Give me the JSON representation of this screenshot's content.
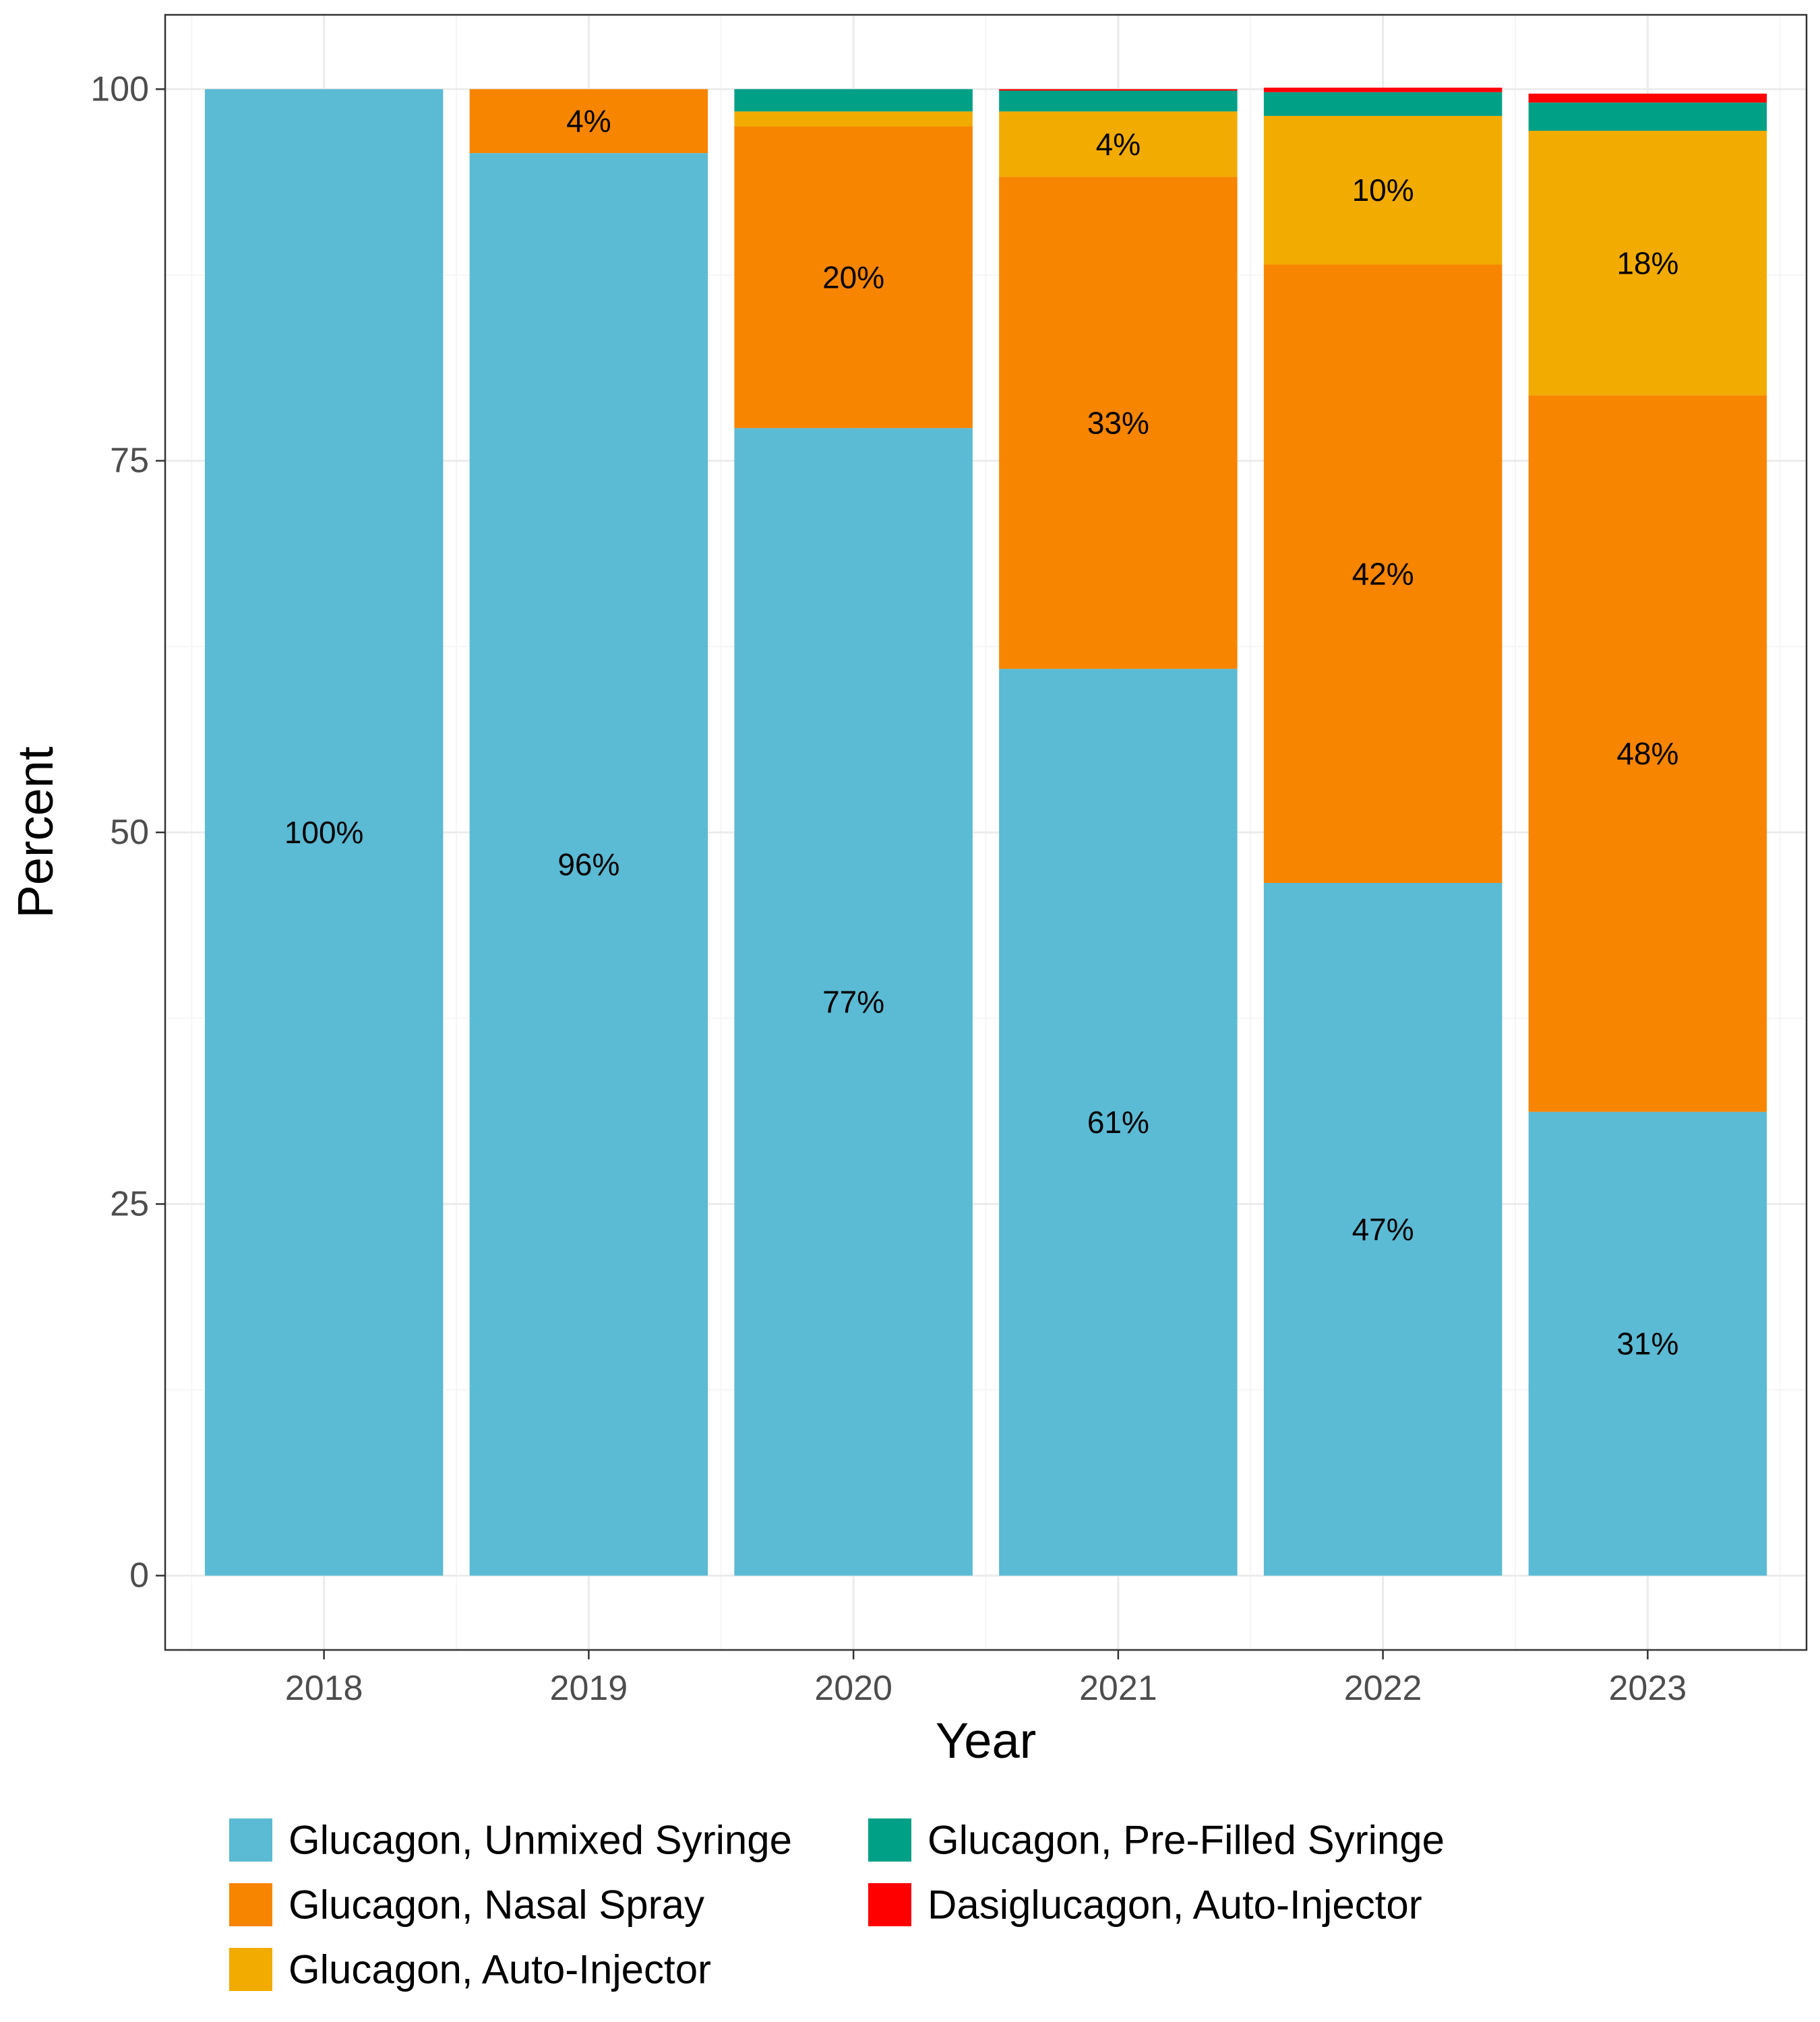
{
  "chart_data": {
    "type": "bar",
    "stacked": true,
    "xlabel": "Year",
    "ylabel": "Percent",
    "ylim": [
      -5,
      105
    ],
    "yticks": [
      0,
      25,
      50,
      75,
      100
    ],
    "grid": true,
    "legend_position": "bottom",
    "categories": [
      "2018",
      "2019",
      "2020",
      "2021",
      "2022",
      "2023"
    ],
    "series": [
      {
        "name": "Glucagon, Unmixed Syringe",
        "color": "#5bbad4",
        "values": [
          100,
          95.7,
          77.2,
          61.0,
          46.6,
          31.2
        ],
        "labels": [
          "100%",
          "96%",
          "77%",
          "61%",
          "47%",
          "31%"
        ]
      },
      {
        "name": "Glucagon, Nasal Spray",
        "color": "#f78500",
        "values": [
          0,
          4.3,
          20.3,
          33.1,
          41.6,
          48.2
        ],
        "labels": [
          "",
          "4%",
          "20%",
          "33%",
          "42%",
          "48%"
        ]
      },
      {
        "name": "Glucagon, Auto-Injector",
        "color": "#f2ab00",
        "values": [
          0,
          0,
          1.0,
          4.4,
          10.0,
          17.8
        ],
        "labels": [
          "",
          "",
          "",
          "4%",
          "10%",
          "18%"
        ]
      },
      {
        "name": "Glucagon, Pre-Filled Syringe",
        "color": "#00a087",
        "values": [
          0,
          0,
          1.5,
          1.4,
          1.6,
          1.9
        ],
        "labels": [
          "",
          "",
          "",
          "",
          "",
          ""
        ]
      },
      {
        "name": "Dasiglucagon, Auto-Injector",
        "color": "#ff0000",
        "values": [
          0,
          0,
          0,
          0.1,
          0.3,
          0.6
        ],
        "labels": [
          "",
          "",
          "",
          "",
          "",
          ""
        ]
      }
    ],
    "legend_order": [
      0,
      1,
      2,
      3,
      4
    ],
    "colors": {
      "panel_border": "#333333",
      "grid_major": "#ebebeb",
      "grid_minor": "#f5f5f5",
      "tick_text": "#4d4d4d"
    }
  }
}
